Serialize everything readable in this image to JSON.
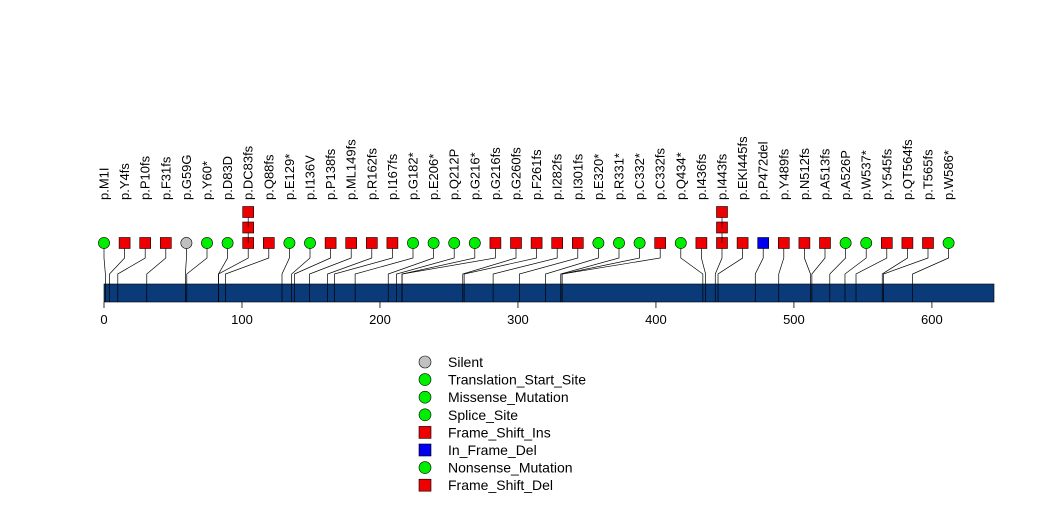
{
  "chart_data": {
    "type": "scatter",
    "subtype": "lollipop",
    "protein_length": 645,
    "xlim": [
      0,
      645
    ],
    "x_ticks": [
      0,
      100,
      200,
      300,
      400,
      500,
      600
    ],
    "colors": {
      "Silent": "#c0c0c0",
      "Translation_Start_Site": "#00ee00",
      "Missense_Mutation": "#00ee00",
      "Splice_Site": "#00ee00",
      "Frame_Shift_Ins": "#ee0000",
      "In_Frame_Del": "#0000ee",
      "Nonsense_Mutation": "#00ee00",
      "Frame_Shift_Del": "#ee0000",
      "protein_bar": "#0b3a78"
    },
    "mutations": [
      {
        "label": "p.M1I",
        "pos": 1,
        "type": "Translation_Start_Site",
        "count": 1
      },
      {
        "label": "p.Y4fs",
        "pos": 4,
        "type": "Frame_Shift_Del",
        "count": 1
      },
      {
        "label": "p.P10fs",
        "pos": 10,
        "type": "Frame_Shift_Del",
        "count": 1
      },
      {
        "label": "p.F31fs",
        "pos": 31,
        "type": "Frame_Shift_Del",
        "count": 1
      },
      {
        "label": "p.G59G",
        "pos": 59,
        "type": "Silent",
        "count": 1
      },
      {
        "label": "p.Y60*",
        "pos": 60,
        "type": "Nonsense_Mutation",
        "count": 1
      },
      {
        "label": "p.D83D",
        "pos": 83,
        "type": "Splice_Site",
        "count": 1
      },
      {
        "label": "p.DC83fs",
        "pos": 83,
        "type": "Frame_Shift_Del",
        "count": 3
      },
      {
        "label": "p.Q88fs",
        "pos": 88,
        "type": "Frame_Shift_Del",
        "count": 1
      },
      {
        "label": "p.E129*",
        "pos": 129,
        "type": "Nonsense_Mutation",
        "count": 1
      },
      {
        "label": "p.I136V",
        "pos": 136,
        "type": "Missense_Mutation",
        "count": 1
      },
      {
        "label": "p.P138fs",
        "pos": 138,
        "type": "Frame_Shift_Del",
        "count": 1
      },
      {
        "label": "p.ML149fs",
        "pos": 149,
        "type": "Frame_Shift_Del",
        "count": 1
      },
      {
        "label": "p.R162fs",
        "pos": 162,
        "type": "Frame_Shift_Del",
        "count": 1
      },
      {
        "label": "p.I167fs",
        "pos": 167,
        "type": "Frame_Shift_Del",
        "count": 1
      },
      {
        "label": "p.G182*",
        "pos": 182,
        "type": "Nonsense_Mutation",
        "count": 1
      },
      {
        "label": "p.E206*",
        "pos": 206,
        "type": "Nonsense_Mutation",
        "count": 1
      },
      {
        "label": "p.Q212P",
        "pos": 212,
        "type": "Missense_Mutation",
        "count": 1
      },
      {
        "label": "p.G216*",
        "pos": 216,
        "type": "Nonsense_Mutation",
        "count": 1
      },
      {
        "label": "p.G216fs",
        "pos": 216,
        "type": "Frame_Shift_Del",
        "count": 1
      },
      {
        "label": "p.G260fs",
        "pos": 260,
        "type": "Frame_Shift_Del",
        "count": 1
      },
      {
        "label": "p.F261fs",
        "pos": 261,
        "type": "Frame_Shift_Del",
        "count": 1
      },
      {
        "label": "p.I282fs",
        "pos": 282,
        "type": "Frame_Shift_Del",
        "count": 1
      },
      {
        "label": "p.I301fs",
        "pos": 301,
        "type": "Frame_Shift_Del",
        "count": 1
      },
      {
        "label": "p.E320*",
        "pos": 320,
        "type": "Nonsense_Mutation",
        "count": 1
      },
      {
        "label": "p.R331*",
        "pos": 331,
        "type": "Nonsense_Mutation",
        "count": 1
      },
      {
        "label": "p.C332*",
        "pos": 332,
        "type": "Nonsense_Mutation",
        "count": 1
      },
      {
        "label": "p.C332fs",
        "pos": 332,
        "type": "Frame_Shift_Del",
        "count": 1
      },
      {
        "label": "p.Q434*",
        "pos": 434,
        "type": "Nonsense_Mutation",
        "count": 1
      },
      {
        "label": "p.I436fs",
        "pos": 436,
        "type": "Frame_Shift_Del",
        "count": 1
      },
      {
        "label": "p.I443fs",
        "pos": 443,
        "type": "Frame_Shift_Del",
        "count": 3
      },
      {
        "label": "p.EKI445fs",
        "pos": 445,
        "type": "Frame_Shift_Del",
        "count": 1
      },
      {
        "label": "p.P472del",
        "pos": 472,
        "type": "In_Frame_Del",
        "count": 1
      },
      {
        "label": "p.Y489fs",
        "pos": 489,
        "type": "Frame_Shift_Del",
        "count": 1
      },
      {
        "label": "p.N512fs",
        "pos": 512,
        "type": "Frame_Shift_Del",
        "count": 1
      },
      {
        "label": "p.A513fs",
        "pos": 513,
        "type": "Frame_Shift_Del",
        "count": 1
      },
      {
        "label": "p.A526P",
        "pos": 526,
        "type": "Missense_Mutation",
        "count": 1
      },
      {
        "label": "p.W537*",
        "pos": 537,
        "type": "Nonsense_Mutation",
        "count": 1
      },
      {
        "label": "p.Y545fs",
        "pos": 545,
        "type": "Frame_Shift_Del",
        "count": 1
      },
      {
        "label": "p.QT564fs",
        "pos": 564,
        "type": "Frame_Shift_Del",
        "count": 1
      },
      {
        "label": "p.T565fs",
        "pos": 565,
        "type": "Frame_Shift_Del",
        "count": 1
      },
      {
        "label": "p.W586*",
        "pos": 586,
        "type": "Nonsense_Mutation",
        "count": 1
      }
    ],
    "legend": {
      "placement": "bottom-center",
      "entries": [
        {
          "name": "Silent",
          "shape": "circle"
        },
        {
          "name": "Translation_Start_Site",
          "shape": "circle"
        },
        {
          "name": "Missense_Mutation",
          "shape": "circle"
        },
        {
          "name": "Splice_Site",
          "shape": "circle"
        },
        {
          "name": "Frame_Shift_Ins",
          "shape": "square"
        },
        {
          "name": "In_Frame_Del",
          "shape": "square"
        },
        {
          "name": "Nonsense_Mutation",
          "shape": "circle"
        },
        {
          "name": "Frame_Shift_Del",
          "shape": "square"
        }
      ]
    }
  }
}
